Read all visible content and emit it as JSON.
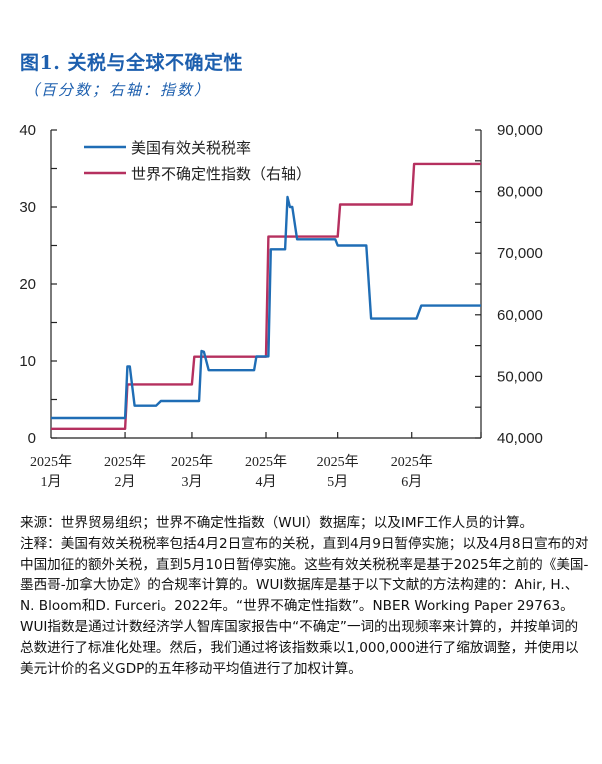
{
  "figure": {
    "title": "图1. 关税与全球不确定性",
    "subtitle": "（百分数；右轴：指数）"
  },
  "chart_data": {
    "type": "line",
    "title": "图1. 关税与全球不确定性",
    "subtitle": "（百分数；右轴：指数）",
    "xlabel": "",
    "ylabel": "百分数",
    "y2label": "指数",
    "x_ticks": [
      "2025年\n1月",
      "2025年\n2月",
      "2025年\n3月",
      "2025年\n4月",
      "2025年\n5月",
      "2025年\n6月"
    ],
    "ylim": [
      0,
      40
    ],
    "y_ticks": [
      0,
      10,
      20,
      30,
      40
    ],
    "y2lim": [
      40000,
      90000
    ],
    "y2_ticks": [
      "40,000",
      "50,000",
      "60,000",
      "70,000",
      "80,000",
      "90,000"
    ],
    "legend_position": "upper left",
    "grid": false,
    "series": [
      {
        "name": "美国有效关税税率",
        "axis": "left",
        "color": "#1f6db5",
        "points": [
          [
            "2025-01-01",
            2.6
          ],
          [
            "2025-02-01",
            2.6
          ],
          [
            "2025-02-02",
            9.3
          ],
          [
            "2025-02-03",
            9.3
          ],
          [
            "2025-02-05",
            4.2
          ],
          [
            "2025-02-14",
            4.2
          ],
          [
            "2025-02-16",
            4.8
          ],
          [
            "2025-03-04",
            4.8
          ],
          [
            "2025-03-05",
            11.3
          ],
          [
            "2025-03-06",
            11.2
          ],
          [
            "2025-03-08",
            8.8
          ],
          [
            "2025-03-27",
            8.8
          ],
          [
            "2025-03-28",
            10.6
          ],
          [
            "2025-04-02",
            10.6
          ],
          [
            "2025-04-03",
            24.5
          ],
          [
            "2025-04-09",
            24.5
          ],
          [
            "2025-04-10",
            31.3
          ],
          [
            "2025-04-11",
            30.0
          ],
          [
            "2025-04-12",
            30.0
          ],
          [
            "2025-04-14",
            25.8
          ],
          [
            "2025-04-30",
            25.8
          ],
          [
            "2025-05-01",
            25.0
          ],
          [
            "2025-05-13",
            25.0
          ],
          [
            "2025-05-15",
            15.5
          ],
          [
            "2025-06-03",
            15.5
          ],
          [
            "2025-06-05",
            17.2
          ],
          [
            "2025-06-30",
            17.2
          ]
        ]
      },
      {
        "name": "世界不确定性指数（右轴）",
        "axis": "right",
        "color": "#b5305f",
        "points": [
          [
            "2025-01-01",
            41500
          ],
          [
            "2025-02-01",
            41500
          ],
          [
            "2025-02-02",
            48700
          ],
          [
            "2025-03-01",
            48700
          ],
          [
            "2025-03-02",
            53200
          ],
          [
            "2025-04-01",
            53200
          ],
          [
            "2025-04-02",
            72700
          ],
          [
            "2025-05-01",
            72700
          ],
          [
            "2025-05-02",
            77900
          ],
          [
            "2025-06-01",
            77900
          ],
          [
            "2025-06-02",
            84500
          ],
          [
            "2025-06-30",
            84500
          ]
        ]
      }
    ]
  },
  "notes": {
    "source": "来源：世界贸易组织；世界不确定性指数（WUI）数据库；以及IMF工作人员的计算。",
    "note": "注释：美国有效关税税率包括4月2日宣布的关税，直到4月9日暂停实施；以及4月8日宣布的对中国加征的额外关税，直到5月10日暂停实施。这些有效关税税率是基于2025年之前的《美国-墨西哥-加拿大协定》的合规率计算的。WUI数据库是基于以下文献的方法构建的：Ahir, H.、N. Bloom和D. Furceri。2022年。“世界不确定性指数”。NBER Working Paper 29763。WUI指数是通过计数经济学人智库国家报告中“不确定”一词的出现频率来计算的，并按单词的总数进行了标准化处理。然后，我们通过将该指数乘以1,000,000进行了缩放调整，并使用以美元计价的名义GDP的五年移动平均值进行了加权计算。"
  }
}
